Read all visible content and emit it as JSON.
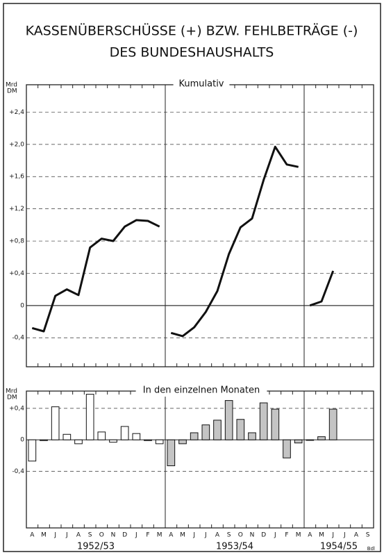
{
  "title": [
    "KASSENÜBERSCHÜSSE (+) BZW. FEHLBETRÄGE (-)",
    "DES BUNDESHAUSHALTS"
  ],
  "credit": "Bdl",
  "chart_data": [
    {
      "type": "line",
      "title": "Kumulativ",
      "y_label": [
        "Mrd",
        "DM"
      ],
      "color": "#111111",
      "ylim": [
        -0.76,
        2.74
      ],
      "yticks": [
        {
          "value": -0.4,
          "label": "-0,4"
        },
        0,
        {
          "value": 0.4,
          "label": "+0,4"
        },
        {
          "value": 0.8,
          "label": "+0,8"
        },
        {
          "value": 1.2,
          "label": "+1,2"
        },
        {
          "value": 1.6,
          "label": "+1,6"
        },
        {
          "value": 2.0,
          "label": "+2,0"
        },
        {
          "value": 2.4,
          "label": "+2,4"
        }
      ],
      "grid": true,
      "series": [
        {
          "values": [
            -0.28,
            -0.32,
            0.12,
            0.2,
            0.13,
            0.72,
            0.83,
            0.8,
            0.98,
            1.06,
            1.05,
            0.98
          ]
        },
        {
          "values": [
            -0.34,
            -0.38,
            -0.27,
            -0.08,
            0.18,
            0.64,
            0.97,
            1.08,
            1.56,
            1.97,
            1.75,
            1.72
          ]
        },
        {
          "values": [
            0.0,
            0.05,
            0.43,
            null,
            null,
            null
          ]
        }
      ]
    },
    {
      "type": "bar",
      "title": "In den einzelnen Monaten",
      "y_label": [
        "Mrd",
        "DM"
      ],
      "ylim": [
        -1.12,
        0.62
      ],
      "yticks": [
        {
          "value": -0.4,
          "label": "-0,4"
        },
        0,
        {
          "value": 0.4,
          "label": "+0,4"
        }
      ],
      "grid": true,
      "series": [
        {
          "name": "1952/53",
          "color": "#ffffff",
          "categories": [
            "A",
            "M",
            "J",
            "J",
            "A",
            "S",
            "O",
            "N",
            "D",
            "J",
            "F",
            "M"
          ],
          "values": [
            -0.27,
            -0.01,
            0.42,
            0.07,
            -0.05,
            0.58,
            0.1,
            -0.03,
            0.17,
            0.08,
            -0.01,
            -0.05
          ]
        },
        {
          "name": "1953/54",
          "color": "#c4c4c4",
          "categories": [
            "A",
            "M",
            "J",
            "J",
            "A",
            "S",
            "O",
            "N",
            "D",
            "J",
            "F",
            "M"
          ],
          "values": [
            -0.33,
            -0.05,
            0.09,
            0.19,
            0.25,
            0.5,
            0.26,
            0.09,
            0.47,
            0.39,
            -0.23,
            -0.04
          ]
        },
        {
          "name": "1954/55",
          "color": "#c4c4c4",
          "categories": [
            "A",
            "M",
            "J",
            "J",
            "A",
            "S"
          ],
          "values": [
            0.0,
            0.04,
            0.39,
            null,
            null,
            null
          ]
        }
      ]
    }
  ]
}
